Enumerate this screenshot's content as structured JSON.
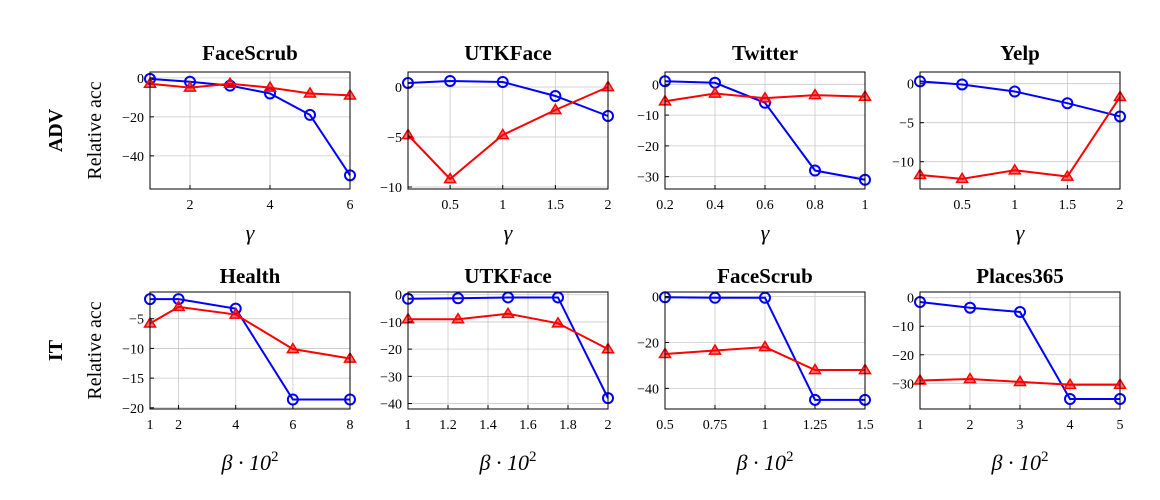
{
  "row_labels": [
    "ADV",
    "IT"
  ],
  "y_axis_label": "Relative acc",
  "colors": {
    "series_blue": "#0000ff",
    "series_red": "#ff0000",
    "grid": "#c8c8c8"
  },
  "markers": {
    "series_blue": "circle",
    "series_red": "triangle"
  },
  "chart_data": [
    {
      "type": "line",
      "title": "FaceScrub",
      "xlabel": "γ",
      "x": [
        1,
        2,
        3,
        4,
        5,
        6
      ],
      "xlim": [
        1,
        6
      ],
      "ylim": [
        -57,
        3
      ],
      "xticks": [
        2,
        4,
        6
      ],
      "yticks": [
        0,
        -20,
        -40
      ],
      "grid": true,
      "series": [
        {
          "color": "blue",
          "values": [
            -0.5,
            -2,
            -4,
            -8,
            -19,
            -50
          ]
        },
        {
          "color": "red",
          "values": [
            -3,
            -5,
            -3,
            -5,
            -8,
            -9
          ]
        }
      ]
    },
    {
      "type": "line",
      "title": "UTKFace",
      "xlabel": "γ",
      "x": [
        0.1,
        0.5,
        1,
        1.5,
        2
      ],
      "xlim": [
        0.1,
        2
      ],
      "ylim": [
        -10.2,
        1.5
      ],
      "xticks": [
        0.5,
        1,
        1.5,
        2
      ],
      "yticks": [
        0,
        -5,
        -10
      ],
      "grid": true,
      "series": [
        {
          "color": "blue",
          "values": [
            0.4,
            0.6,
            0.5,
            -0.9,
            -2.9
          ]
        },
        {
          "color": "red",
          "values": [
            -4.8,
            -9.2,
            -4.8,
            -2.3,
            0
          ]
        }
      ]
    },
    {
      "type": "line",
      "title": "Twitter",
      "xlabel": "γ",
      "x": [
        0.2,
        0.4,
        0.6,
        0.8,
        1.0
      ],
      "xlim": [
        0.2,
        1.0
      ],
      "ylim": [
        -34,
        4
      ],
      "xticks": [
        0.2,
        0.4,
        0.6,
        0.8,
        1
      ],
      "yticks": [
        0,
        -10,
        -20,
        -30
      ],
      "grid": true,
      "series": [
        {
          "color": "blue",
          "values": [
            1,
            0.5,
            -6,
            -28,
            -31
          ]
        },
        {
          "color": "red",
          "values": [
            -5.5,
            -3,
            -4.5,
            -3.5,
            -4
          ]
        }
      ]
    },
    {
      "type": "line",
      "title": "Yelp",
      "xlabel": "γ",
      "x": [
        0.1,
        0.5,
        1,
        1.5,
        2
      ],
      "xlim": [
        0.1,
        2
      ],
      "ylim": [
        -13.5,
        1.5
      ],
      "xticks": [
        0.5,
        1,
        1.5,
        2
      ],
      "yticks": [
        0,
        -5,
        -10
      ],
      "grid": true,
      "series": [
        {
          "color": "blue",
          "values": [
            0.3,
            -0.1,
            -1,
            -2.5,
            -4.2
          ]
        },
        {
          "color": "red",
          "values": [
            -11.7,
            -12.2,
            -11.1,
            -11.9,
            -1.7
          ]
        }
      ]
    },
    {
      "type": "line",
      "title": "Health",
      "xlabel": "β · 10",
      "xlabel_superscript": "2",
      "x": [
        1,
        2,
        4,
        6,
        8
      ],
      "xlim": [
        1,
        8
      ],
      "ylim": [
        -20.2,
        -0.5
      ],
      "xticks": [
        1,
        2,
        4,
        6,
        8
      ],
      "yticks": [
        -5,
        -10,
        -15,
        -20
      ],
      "grid": true,
      "series": [
        {
          "color": "blue",
          "values": [
            -1.7,
            -1.7,
            -3.3,
            -18.6,
            -18.6
          ]
        },
        {
          "color": "red",
          "values": [
            -5.8,
            -3,
            -4.3,
            -10.1,
            -11.7
          ]
        }
      ]
    },
    {
      "type": "line",
      "title": "UTKFace",
      "xlabel": "β · 10",
      "xlabel_superscript": "2",
      "x": [
        1,
        1.25,
        1.5,
        1.75,
        2
      ],
      "xlim": [
        1,
        2
      ],
      "ylim": [
        -42,
        1
      ],
      "xticks": [
        1,
        1.2,
        1.4,
        1.6,
        1.8,
        2
      ],
      "yticks": [
        0,
        -10,
        -20,
        -30,
        -40
      ],
      "grid": true,
      "series": [
        {
          "color": "blue",
          "values": [
            -1.5,
            -1.3,
            -1,
            -1,
            -38
          ]
        },
        {
          "color": "red",
          "values": [
            -9,
            -9,
            -7,
            -10.5,
            -20
          ]
        }
      ]
    },
    {
      "type": "line",
      "title": "FaceScrub",
      "xlabel": "β · 10",
      "xlabel_superscript": "2",
      "x": [
        0.5,
        0.75,
        1,
        1.25,
        1.5
      ],
      "xlim": [
        0.5,
        1.5
      ],
      "ylim": [
        -49,
        2
      ],
      "xticks": [
        0.5,
        0.75,
        1,
        1.25,
        1.5
      ],
      "yticks": [
        0,
        -20,
        -40
      ],
      "grid": true,
      "series": [
        {
          "color": "blue",
          "values": [
            -0.3,
            -0.5,
            -0.5,
            -45,
            -45
          ]
        },
        {
          "color": "red",
          "values": [
            -25,
            -23.5,
            -22,
            -32,
            -32
          ]
        }
      ]
    },
    {
      "type": "line",
      "title": "Places365",
      "xlabel": "β · 10",
      "xlabel_superscript": "2",
      "x": [
        1,
        2,
        3,
        4,
        5
      ],
      "xlim": [
        1,
        5
      ],
      "ylim": [
        -39,
        2
      ],
      "xticks": [
        1,
        2,
        3,
        4,
        5
      ],
      "yticks": [
        0,
        -10,
        -20,
        -30
      ],
      "grid": true,
      "series": [
        {
          "color": "blue",
          "values": [
            -1.5,
            -3.5,
            -5,
            -35.5,
            -35.5
          ]
        },
        {
          "color": "red",
          "values": [
            -29,
            -28.5,
            -29.5,
            -30.5,
            -30.5
          ]
        }
      ]
    }
  ]
}
